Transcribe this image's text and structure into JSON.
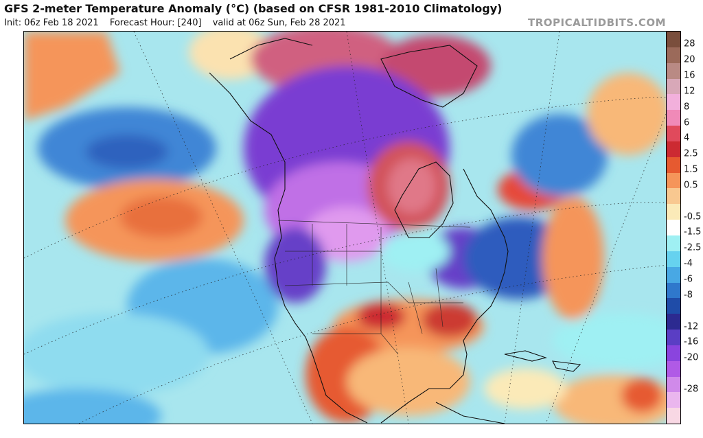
{
  "header": {
    "title": "GFS 2-meter Temperature Anomaly (°C) (based on CFSR 1981-2010 Climatology)",
    "init": "Init: 06z Feb 18 2021",
    "forecast_hour": "Forecast Hour: [240]",
    "valid": "valid at 06z Sun, Feb 28 2021"
  },
  "watermark": "TROPICALTIDBITS.COM",
  "legend": {
    "colors": [
      "#7a4e3c",
      "#9b6a5a",
      "#b98a84",
      "#d8a8b8",
      "#f2b0dc",
      "#f08ab8",
      "#e04a5c",
      "#cc2a32",
      "#e65a30",
      "#f5955a",
      "#f8c890",
      "#fbeab8",
      "#ffffff",
      "#9ff0f3",
      "#66d2ef",
      "#48a8e4",
      "#2f78cc",
      "#1f4ca8",
      "#2c2a90",
      "#5a3ec4",
      "#8a44de",
      "#b05ae6",
      "#d08aea",
      "#eab6ee",
      "#f8d8e4"
    ],
    "tick_labels": [
      "28",
      "20",
      "16",
      "12",
      "8",
      "6",
      "4",
      "2.5",
      "1.5",
      "0.5",
      "-0.5",
      "-1.5",
      "-2.5",
      "-4",
      "-6",
      "-8",
      "-12",
      "-16",
      "-20",
      "-28"
    ]
  }
}
